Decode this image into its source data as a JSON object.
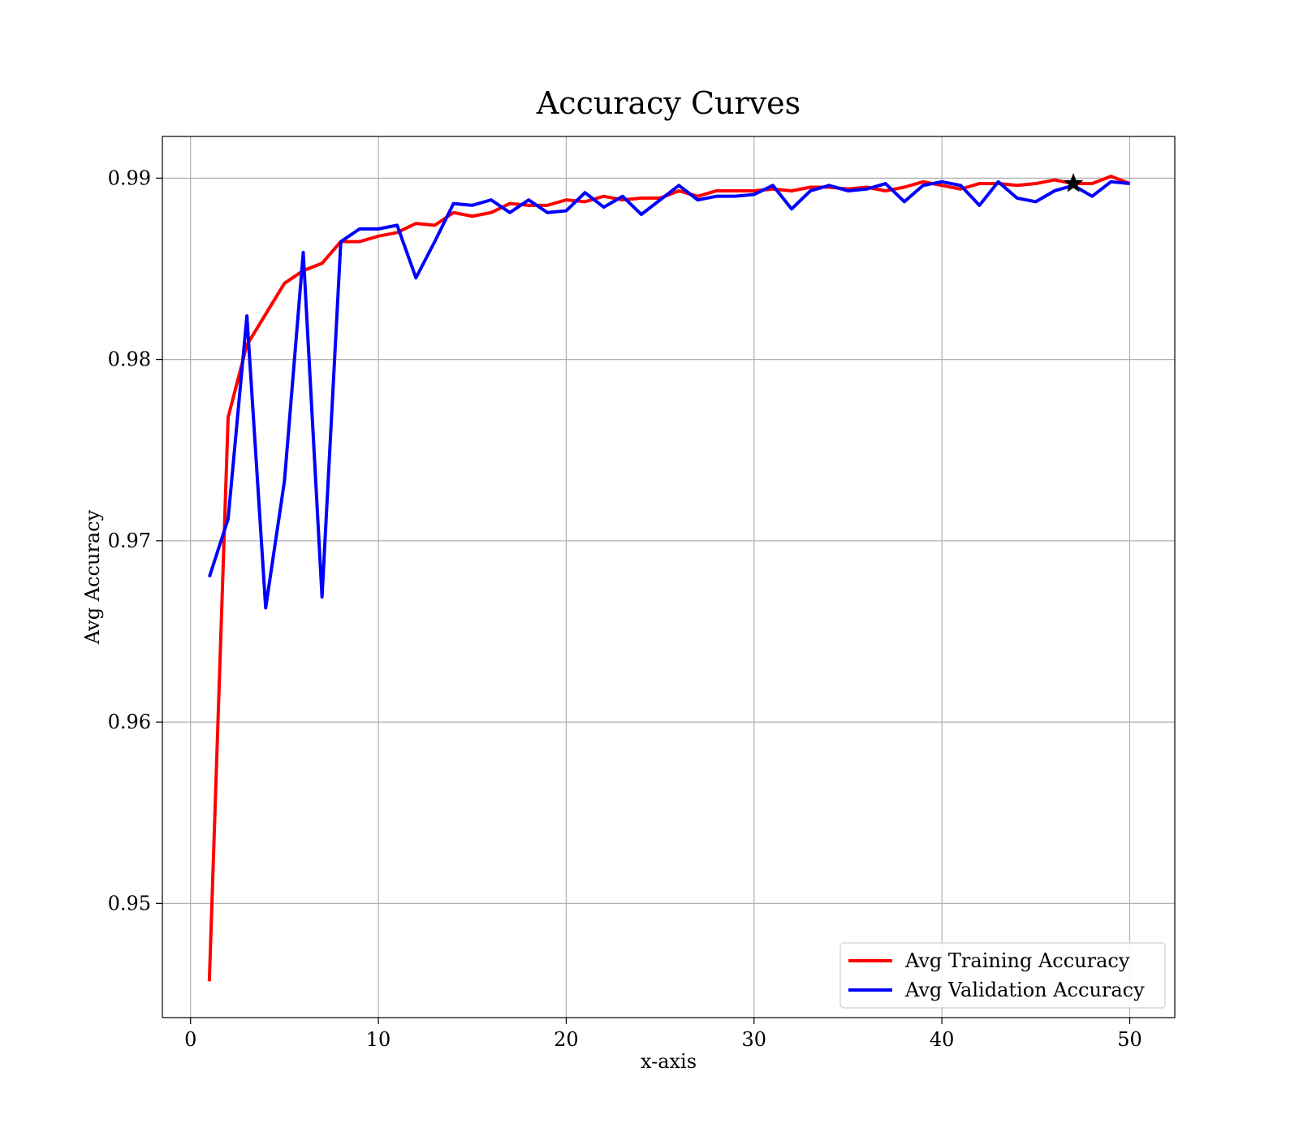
{
  "chart_data": {
    "type": "line",
    "title": "Accuracy Curves",
    "xlabel": "x-axis",
    "ylabel": "Avg Accuracy",
    "xlim": [
      -1.5,
      52.4
    ],
    "ylim": [
      0.9437,
      0.9923
    ],
    "xticks": [
      0,
      10,
      20,
      30,
      40,
      50
    ],
    "xtick_labels": [
      "0",
      "10",
      "20",
      "30",
      "40",
      "50"
    ],
    "yticks": [
      0.95,
      0.96,
      0.97,
      0.98,
      0.99
    ],
    "ytick_labels": [
      "0.95",
      "0.96",
      "0.97",
      "0.98",
      "0.99"
    ],
    "grid": true,
    "legend_position": "bottom-right",
    "x": [
      1,
      2,
      3,
      4,
      5,
      6,
      7,
      8,
      9,
      10,
      11,
      12,
      13,
      14,
      15,
      16,
      17,
      18,
      19,
      20,
      21,
      22,
      23,
      24,
      25,
      26,
      27,
      28,
      29,
      30,
      31,
      32,
      33,
      34,
      35,
      36,
      37,
      38,
      39,
      40,
      41,
      42,
      43,
      44,
      45,
      46,
      47,
      48,
      49,
      50
    ],
    "series": [
      {
        "name": "Avg Training Accuracy",
        "color": "#ff0000",
        "values": [
          0.9457,
          0.9768,
          0.9808,
          0.9825,
          0.9842,
          0.9849,
          0.9853,
          0.9865,
          0.9865,
          0.9868,
          0.987,
          0.9875,
          0.9874,
          0.9881,
          0.9879,
          0.9881,
          0.9886,
          0.9885,
          0.9885,
          0.9888,
          0.9887,
          0.989,
          0.9888,
          0.9889,
          0.9889,
          0.9893,
          0.989,
          0.9893,
          0.9893,
          0.9893,
          0.9894,
          0.9893,
          0.9895,
          0.9895,
          0.9894,
          0.9895,
          0.9893,
          0.9895,
          0.9898,
          0.9896,
          0.9894,
          0.9897,
          0.9897,
          0.9896,
          0.9897,
          0.9899,
          0.9897,
          0.9897,
          0.9901,
          0.9897
        ]
      },
      {
        "name": "Avg Validation Accuracy",
        "color": "#0000ff",
        "values": [
          0.968,
          0.9712,
          0.9824,
          0.9663,
          0.9733,
          0.9859,
          0.9669,
          0.9865,
          0.9872,
          0.9872,
          0.9874,
          0.9845,
          0.9865,
          0.9886,
          0.9885,
          0.9888,
          0.9881,
          0.9888,
          0.9881,
          0.9882,
          0.9892,
          0.9884,
          0.989,
          0.988,
          0.9888,
          0.9896,
          0.9888,
          0.989,
          0.989,
          0.9891,
          0.9896,
          0.9883,
          0.9893,
          0.9896,
          0.9893,
          0.9894,
          0.9897,
          0.9887,
          0.9896,
          0.9898,
          0.9896,
          0.9885,
          0.9898,
          0.9889,
          0.9887,
          0.9893,
          0.9896,
          0.989,
          0.9898,
          0.9897
        ]
      }
    ],
    "annotations": [
      {
        "type": "star-marker",
        "x": 47,
        "y": 0.9897,
        "color": "#000000"
      }
    ]
  }
}
